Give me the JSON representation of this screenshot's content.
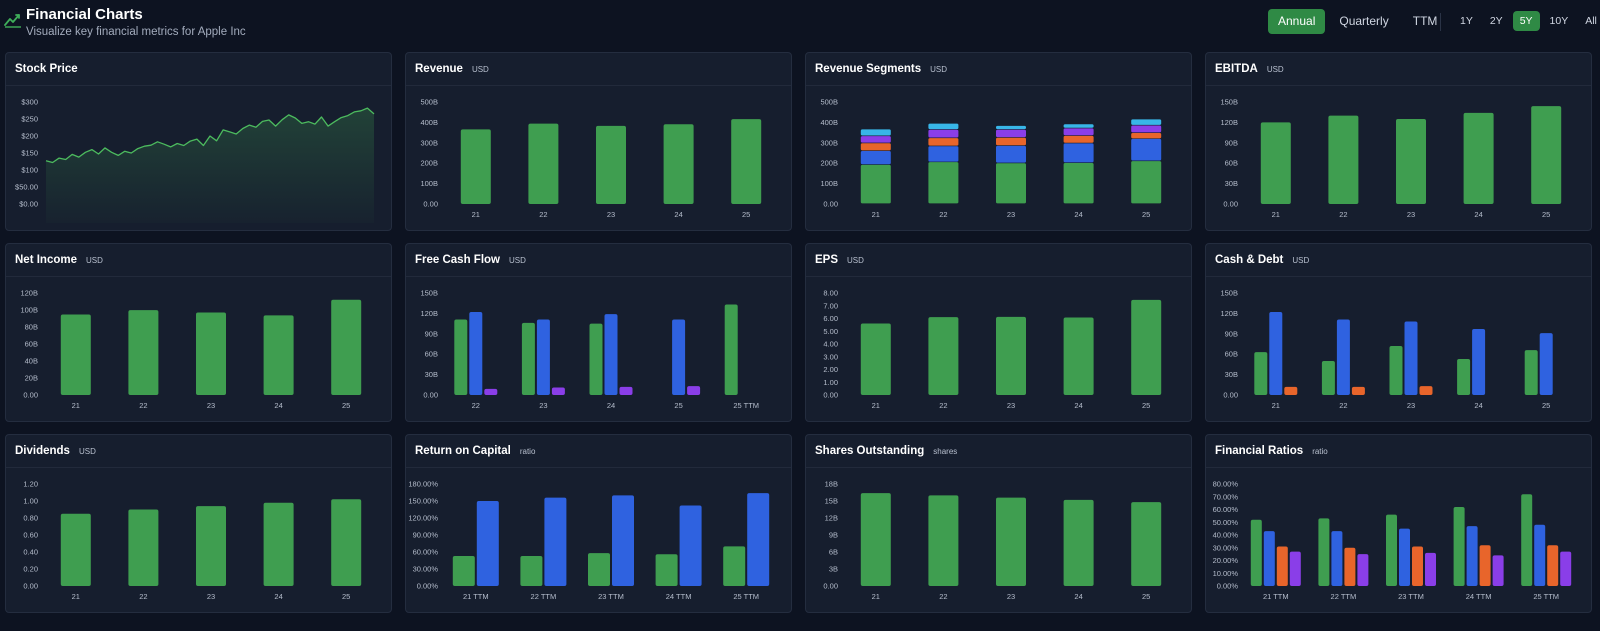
{
  "header": {
    "title": "Financial Charts",
    "subtitle": "Visualize key financial metrics for Apple Inc",
    "icon": "line-chart-icon",
    "period_tabs": [
      {
        "label": "Annual",
        "active": true
      },
      {
        "label": "Quarterly",
        "active": false
      },
      {
        "label": "TTM",
        "active": false
      }
    ],
    "range_tabs": [
      {
        "label": "1Y",
        "active": false
      },
      {
        "label": "2Y",
        "active": false
      },
      {
        "label": "5Y",
        "active": true
      },
      {
        "label": "10Y",
        "active": false
      },
      {
        "label": "All",
        "active": false
      }
    ]
  },
  "colors": {
    "green": "#3f9e50",
    "blue": "#2f62e0",
    "orange": "#e8652b",
    "purple": "#8a3ee8",
    "cyan": "#38b6e8",
    "accent": "#2f8a45"
  },
  "cards": [
    {
      "title": "Stock Price",
      "unit": ""
    },
    {
      "title": "Revenue",
      "unit": "USD"
    },
    {
      "title": "Revenue Segments",
      "unit": "USD"
    },
    {
      "title": "EBITDA",
      "unit": "USD"
    },
    {
      "title": "Net Income",
      "unit": "USD"
    },
    {
      "title": "Free Cash Flow",
      "unit": "USD"
    },
    {
      "title": "EPS",
      "unit": "USD"
    },
    {
      "title": "Cash & Debt",
      "unit": "USD"
    },
    {
      "title": "Dividends",
      "unit": "USD"
    },
    {
      "title": "Return on Capital",
      "unit": "ratio"
    },
    {
      "title": "Shares Outstanding",
      "unit": "shares"
    },
    {
      "title": "Financial Ratios",
      "unit": "ratio"
    }
  ],
  "chart_data": [
    {
      "type": "area",
      "ylim": [
        0,
        300
      ],
      "yticks": [
        "$0.00",
        "$50.00",
        "$100",
        "$150",
        "$200",
        "$250",
        "$300"
      ],
      "x": [
        0,
        2,
        4,
        6,
        8,
        10,
        12,
        14,
        16,
        18,
        20,
        22,
        24,
        26,
        28,
        30,
        32,
        34,
        36,
        38,
        40,
        42,
        44,
        46,
        48,
        50,
        52,
        54,
        56,
        58,
        60,
        62,
        64,
        66,
        68,
        70,
        72,
        74,
        76,
        78,
        80,
        82,
        84,
        86,
        88,
        90,
        92,
        94,
        96,
        98,
        100
      ],
      "values": [
        127,
        122,
        135,
        131,
        146,
        138,
        152,
        160,
        147,
        165,
        152,
        143,
        155,
        150,
        163,
        170,
        173,
        183,
        176,
        168,
        178,
        172,
        185,
        191,
        172,
        200,
        186,
        218,
        212,
        206,
        222,
        232,
        226,
        243,
        247,
        229,
        248,
        262,
        253,
        237,
        242,
        235,
        256,
        229,
        242,
        254,
        260,
        271,
        274,
        282,
        265
      ]
    },
    {
      "type": "bar",
      "categories": [
        "21",
        "22",
        "23",
        "24",
        "25"
      ],
      "ylim": [
        0,
        500
      ],
      "yticks": [
        "0.00",
        "100B",
        "200B",
        "300B",
        "400B",
        "500B"
      ],
      "values": [
        366,
        394,
        383,
        391,
        416
      ]
    },
    {
      "type": "bar",
      "stacked": true,
      "categories": [
        "21",
        "22",
        "23",
        "24",
        "25"
      ],
      "ylim": [
        0,
        500
      ],
      "yticks": [
        "0.00",
        "100B",
        "200B",
        "300B",
        "400B",
        "500B"
      ],
      "series": [
        {
          "color": "green",
          "values": [
            192,
            205,
            200,
            201,
            210
          ]
        },
        {
          "color": "blue",
          "values": [
            68,
            78,
            85,
            96,
            109
          ]
        },
        {
          "color": "orange",
          "values": [
            38,
            40,
            40,
            37,
            29
          ]
        },
        {
          "color": "purple",
          "values": [
            35,
            41,
            39,
            37,
            37
          ]
        },
        {
          "color": "cyan",
          "values": [
            33,
            30,
            19,
            20,
            30
          ]
        }
      ]
    },
    {
      "type": "bar",
      "categories": [
        "21",
        "22",
        "23",
        "24",
        "25"
      ],
      "ylim": [
        0,
        150
      ],
      "yticks": [
        "0.00",
        "30B",
        "60B",
        "90B",
        "120B",
        "150B"
      ],
      "values": [
        120,
        130,
        125,
        134,
        144
      ]
    },
    {
      "type": "bar",
      "categories": [
        "21",
        "22",
        "23",
        "24",
        "25"
      ],
      "ylim": [
        0,
        120
      ],
      "yticks": [
        "0.00",
        "20B",
        "40B",
        "60B",
        "80B",
        "100B",
        "120B"
      ],
      "values": [
        94.7,
        99.8,
        97.0,
        93.7,
        112.0
      ]
    },
    {
      "type": "bar",
      "categories": [
        "22",
        "23",
        "24",
        "25",
        "25 TTM"
      ],
      "ylim": [
        0,
        150
      ],
      "yticks": [
        "0.00",
        "30B",
        "60B",
        "90B",
        "120B",
        "150B"
      ],
      "series": [
        {
          "color": "green",
          "values": [
            111,
            106,
            105,
            0,
            133
          ]
        },
        {
          "color": "blue",
          "values": [
            122,
            111,
            119,
            111,
            0
          ]
        },
        {
          "color": "purple",
          "values": [
            9,
            11,
            12,
            13,
            0
          ]
        }
      ]
    },
    {
      "type": "bar",
      "categories": [
        "21",
        "22",
        "23",
        "24",
        "25"
      ],
      "ylim": [
        0,
        8
      ],
      "yticks": [
        "0.00",
        "1.00",
        "2.00",
        "3.00",
        "4.00",
        "5.00",
        "6.00",
        "7.00",
        "8.00"
      ],
      "values": [
        5.61,
        6.11,
        6.13,
        6.08,
        7.46
      ]
    },
    {
      "type": "bar",
      "categories": [
        "21",
        "22",
        "23",
        "24",
        "25"
      ],
      "ylim": [
        0,
        150
      ],
      "yticks": [
        "0.00",
        "30B",
        "60B",
        "90B",
        "120B",
        "150B"
      ],
      "series": [
        {
          "color": "green",
          "values": [
            63,
            50,
            72,
            53,
            66
          ]
        },
        {
          "color": "blue",
          "values": [
            122,
            111,
            108,
            97,
            91
          ]
        },
        {
          "color": "orange",
          "values": [
            12,
            12,
            13,
            0,
            0
          ]
        }
      ]
    },
    {
      "type": "bar",
      "categories": [
        "21",
        "22",
        "23",
        "24",
        "25"
      ],
      "ylim": [
        0,
        1.2
      ],
      "yticks": [
        "0.00",
        "0.20",
        "0.40",
        "0.60",
        "0.80",
        "1.00",
        "1.20"
      ],
      "values": [
        0.85,
        0.9,
        0.94,
        0.98,
        1.02
      ]
    },
    {
      "type": "bar",
      "categories": [
        "21 TTM",
        "22 TTM",
        "23 TTM",
        "24 TTM",
        "25 TTM"
      ],
      "ylim": [
        0,
        180
      ],
      "yticks": [
        "0.00%",
        "30.00%",
        "60.00%",
        "90.00%",
        "120.00%",
        "150.00%",
        "180.00%"
      ],
      "series": [
        {
          "color": "green",
          "values": [
            53,
            53,
            58,
            56,
            70
          ]
        },
        {
          "color": "blue",
          "values": [
            150,
            156,
            160,
            142,
            164
          ]
        }
      ]
    },
    {
      "type": "bar",
      "categories": [
        "21",
        "22",
        "23",
        "24",
        "25"
      ],
      "ylim": [
        0,
        18
      ],
      "yticks": [
        "0.00",
        "3B",
        "6B",
        "9B",
        "12B",
        "15B",
        "18B"
      ],
      "values": [
        16.4,
        16.0,
        15.6,
        15.2,
        14.8
      ]
    },
    {
      "type": "bar",
      "categories": [
        "21 TTM",
        "22 TTM",
        "23 TTM",
        "24 TTM",
        "25 TTM"
      ],
      "ylim": [
        0,
        80
      ],
      "yticks": [
        "0.00%",
        "10.00%",
        "20.00%",
        "30.00%",
        "40.00%",
        "50.00%",
        "60.00%",
        "70.00%",
        "80.00%"
      ],
      "series": [
        {
          "color": "green",
          "values": [
            52,
            53,
            56,
            62,
            72
          ]
        },
        {
          "color": "blue",
          "values": [
            43,
            43,
            45,
            47,
            48
          ]
        },
        {
          "color": "orange",
          "values": [
            31,
            30,
            31,
            32,
            32
          ]
        },
        {
          "color": "purple",
          "values": [
            27,
            25,
            26,
            24,
            27
          ]
        }
      ]
    }
  ]
}
